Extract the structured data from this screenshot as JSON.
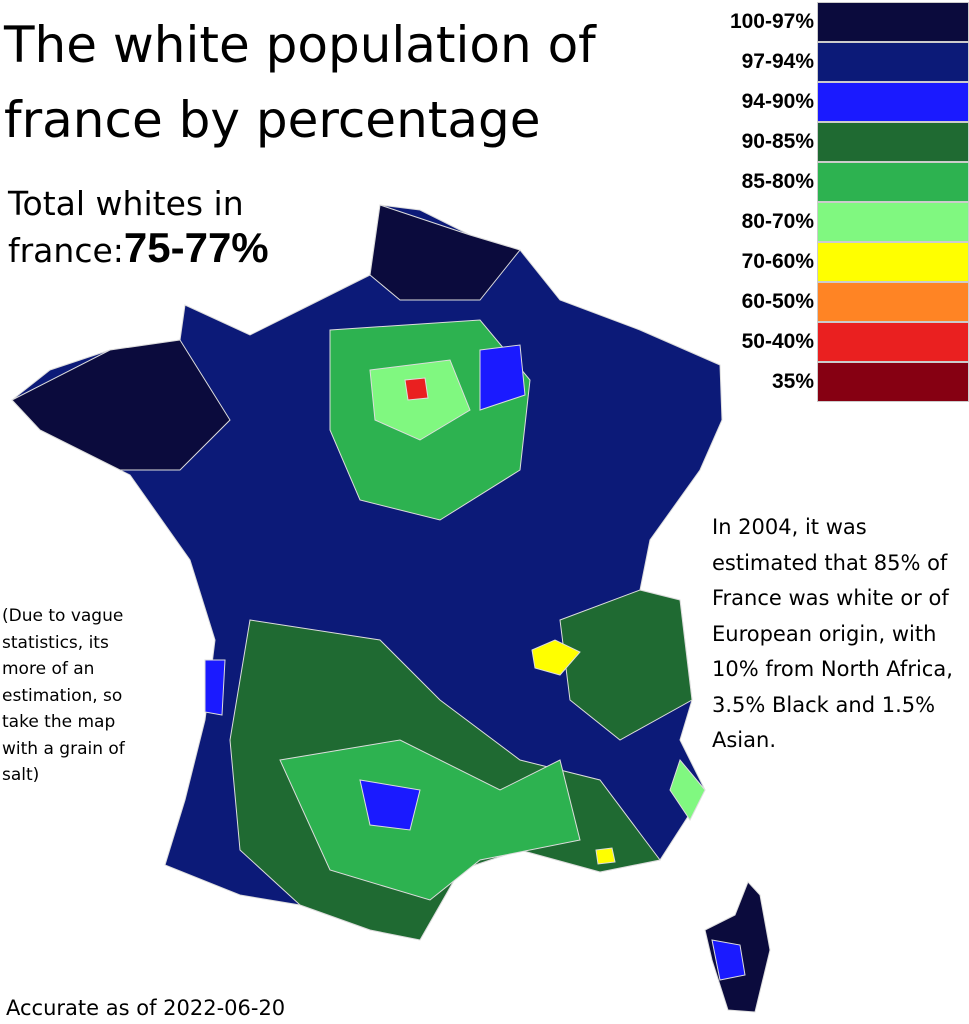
{
  "title": "The white population of france by percentage",
  "total": {
    "label": "Total whites in france:",
    "value": "75-77%"
  },
  "legend": [
    {
      "label": "100-97%",
      "color": "#0b0b3d"
    },
    {
      "label": "97-94%",
      "color": "#0c1a78"
    },
    {
      "label": "94-90%",
      "color": "#1a1aff"
    },
    {
      "label": "90-85%",
      "color": "#1f6a32"
    },
    {
      "label": "85-80%",
      "color": "#2db250"
    },
    {
      "label": "80-70%",
      "color": "#80f880"
    },
    {
      "label": "70-60%",
      "color": "#ffff00"
    },
    {
      "label": "60-50%",
      "color": "#ff8424"
    },
    {
      "label": "50-40%",
      "color": "#ea2020"
    },
    {
      "label": "35%",
      "color": "#860012"
    }
  ],
  "note_right": "In 2004, it was estimated that 85% of France was white or of European origin, with 10% from North Africa, 3.5% Black and 1.5% Asian.",
  "note_left": "(Due to vague statistics, its more of an estimation, so take the map with a grain of salt)",
  "footer": "Accurate as of 2022-06-20"
}
